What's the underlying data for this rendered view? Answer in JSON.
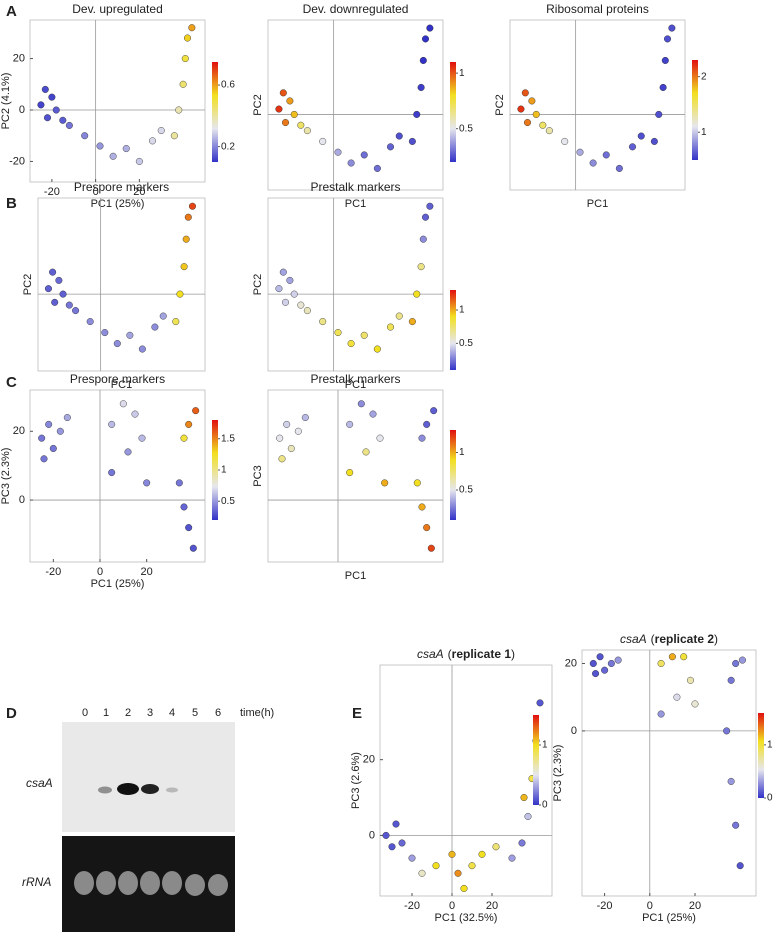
{
  "panel_labels": [
    "A",
    "B",
    "C",
    "D",
    "E"
  ],
  "colormap": [
    "#3232c8",
    "#e6e6ee",
    "#f2e020",
    "#e01010"
  ],
  "chart_data": [
    {
      "type": "scatter",
      "title": "Dev. upregulated",
      "xlabel": "PC1 (25%)",
      "ylabel": "PC2 (4.1%)",
      "xlim": [
        -30,
        50
      ],
      "ylim": [
        -28,
        35
      ],
      "xticks": [
        -20,
        0,
        20
      ],
      "yticks": [
        -20,
        0,
        20
      ],
      "x": [
        -25,
        -22,
        -20,
        -18,
        -15,
        -23,
        -12,
        -5,
        2,
        8,
        14,
        20,
        26,
        30,
        36,
        38,
        40,
        41,
        42,
        44
      ],
      "y": [
        2,
        -3,
        5,
        0,
        -4,
        8,
        -6,
        -10,
        -14,
        -18,
        -15,
        -20,
        -12,
        -8,
        -10,
        0,
        10,
        20,
        28,
        32
      ],
      "values": [
        0.12,
        0.14,
        0.12,
        0.15,
        0.15,
        0.13,
        0.18,
        0.2,
        0.22,
        0.25,
        0.25,
        0.28,
        0.3,
        0.3,
        0.4,
        0.38,
        0.45,
        0.5,
        0.55,
        0.6
      ],
      "clim": [
        0.1,
        0.75
      ],
      "cticks": [
        0.2,
        0.6
      ]
    },
    {
      "type": "scatter",
      "title": "Dev. downregulated",
      "xlabel": "PC1",
      "ylabel": "PC2",
      "xlim": [
        -30,
        50
      ],
      "ylim": [
        -28,
        35
      ],
      "x": [
        -25,
        -22,
        -20,
        -18,
        -15,
        -23,
        -12,
        -5,
        2,
        8,
        14,
        20,
        26,
        30,
        36,
        38,
        40,
        41,
        42,
        44
      ],
      "y": [
        2,
        -3,
        5,
        0,
        -4,
        8,
        -6,
        -10,
        -14,
        -18,
        -15,
        -20,
        -12,
        -8,
        -10,
        0,
        10,
        20,
        28,
        32
      ],
      "values": [
        1.05,
        0.95,
        0.9,
        0.85,
        0.7,
        1.0,
        0.6,
        0.5,
        0.4,
        0.35,
        0.3,
        0.3,
        0.28,
        0.25,
        0.25,
        0.22,
        0.22,
        0.2,
        0.2,
        0.2
      ],
      "clim": [
        0.2,
        1.1
      ],
      "cticks": [
        0.5,
        1
      ]
    },
    {
      "type": "scatter",
      "title": "Ribosomal proteins",
      "xlabel": "PC1",
      "ylabel": "PC2",
      "xlim": [
        -30,
        50
      ],
      "ylim": [
        -28,
        35
      ],
      "x": [
        -25,
        -22,
        -20,
        -18,
        -15,
        -23,
        -12,
        -5,
        2,
        8,
        14,
        20,
        26,
        30,
        36,
        38,
        40,
        41,
        42,
        44
      ],
      "y": [
        2,
        -3,
        5,
        0,
        -4,
        8,
        -6,
        -10,
        -14,
        -18,
        -15,
        -20,
        -12,
        -8,
        -10,
        0,
        10,
        20,
        28,
        32
      ],
      "values": [
        2.2,
        2.0,
        1.9,
        1.8,
        1.5,
        2.1,
        1.3,
        1.1,
        0.9,
        0.8,
        0.7,
        0.7,
        0.65,
        0.6,
        0.6,
        0.6,
        0.55,
        0.55,
        0.6,
        0.6
      ],
      "clim": [
        0.5,
        2.3
      ],
      "cticks": [
        1,
        2
      ]
    },
    {
      "type": "scatter",
      "title": "Prespore markers",
      "xlabel": "PC1",
      "ylabel": "PC2",
      "xlim": [
        -30,
        50
      ],
      "ylim": [
        -28,
        35
      ],
      "x": [
        -25,
        -22,
        -20,
        -18,
        -15,
        -23,
        -12,
        -5,
        2,
        8,
        14,
        20,
        26,
        30,
        36,
        38,
        40,
        41,
        42,
        44
      ],
      "y": [
        2,
        -3,
        5,
        0,
        -4,
        8,
        -6,
        -10,
        -14,
        -18,
        -15,
        -20,
        -12,
        -8,
        -10,
        0,
        10,
        20,
        28,
        32
      ],
      "values": [
        0.2,
        0.2,
        0.22,
        0.2,
        0.25,
        0.2,
        0.25,
        0.3,
        0.3,
        0.3,
        0.35,
        0.3,
        0.3,
        0.35,
        0.8,
        0.9,
        0.95,
        1.0,
        1.1,
        1.2
      ],
      "clim": [
        0.1,
        1.3
      ]
    },
    {
      "type": "scatter",
      "title": "Prestalk markers",
      "xlabel": "PC1",
      "ylabel": "PC2",
      "xlim": [
        -30,
        50
      ],
      "ylim": [
        -28,
        35
      ],
      "x": [
        -25,
        -22,
        -20,
        -18,
        -15,
        -23,
        -12,
        -5,
        2,
        8,
        14,
        20,
        26,
        30,
        36,
        38,
        40,
        41,
        42,
        44
      ],
      "y": [
        2,
        -3,
        5,
        0,
        -4,
        8,
        -6,
        -10,
        -14,
        -18,
        -15,
        -20,
        -12,
        -8,
        -10,
        0,
        10,
        20,
        28,
        32
      ],
      "values": [
        0.4,
        0.45,
        0.35,
        0.45,
        0.55,
        0.35,
        0.6,
        0.7,
        0.8,
        0.85,
        0.75,
        0.9,
        0.8,
        0.7,
        1.0,
        0.9,
        0.7,
        0.3,
        0.2,
        0.2
      ],
      "clim": [
        0.1,
        1.3
      ],
      "cticks": [
        0.5,
        1
      ]
    },
    {
      "type": "scatter",
      "title": "Prespore markers",
      "xlabel": "PC1 (25%)",
      "ylabel": "PC3 (2.3%)",
      "xlim": [
        -30,
        45
      ],
      "ylim": [
        -18,
        32
      ],
      "xticks": [
        -20,
        0,
        20
      ],
      "yticks": [
        0,
        20
      ],
      "x": [
        -25,
        -22,
        -20,
        -17,
        -14,
        -24,
        5,
        10,
        15,
        18,
        12,
        5,
        20,
        38,
        41,
        36,
        34,
        36,
        38,
        40
      ],
      "y": [
        18,
        22,
        15,
        20,
        24,
        12,
        22,
        28,
        25,
        18,
        14,
        8,
        5,
        22,
        26,
        18,
        5,
        -2,
        -8,
        -14
      ],
      "values": [
        0.4,
        0.45,
        0.4,
        0.5,
        0.55,
        0.4,
        0.6,
        0.7,
        0.65,
        0.6,
        0.5,
        0.4,
        0.45,
        1.5,
        1.6,
        1.2,
        0.4,
        0.35,
        0.3,
        0.3
      ],
      "clim": [
        0.2,
        1.8
      ],
      "cticks": [
        0.5,
        1,
        1.5
      ]
    },
    {
      "type": "scatter",
      "title": "Prestalk markers",
      "xlabel": "PC1",
      "ylabel": "PC3",
      "xlim": [
        -30,
        45
      ],
      "ylim": [
        -18,
        32
      ],
      "x": [
        -25,
        -22,
        -20,
        -17,
        -14,
        -24,
        5,
        10,
        15,
        18,
        12,
        5,
        20,
        38,
        41,
        36,
        34,
        36,
        38,
        40
      ],
      "y": [
        18,
        22,
        15,
        20,
        24,
        12,
        22,
        28,
        25,
        18,
        14,
        8,
        5,
        22,
        26,
        18,
        5,
        -2,
        -8,
        -14
      ],
      "values": [
        0.5,
        0.45,
        0.6,
        0.5,
        0.4,
        0.7,
        0.4,
        0.3,
        0.35,
        0.5,
        0.7,
        0.9,
        1.0,
        0.2,
        0.2,
        0.3,
        0.9,
        1.0,
        1.1,
        1.2
      ],
      "clim": [
        0.1,
        1.3
      ],
      "cticks": [
        0.5,
        1
      ]
    },
    {
      "type": "scatter",
      "title_parts": [
        "csaA",
        "(",
        "replicate 1",
        ")"
      ],
      "xlabel": "PC1 (32.5%)",
      "ylabel": "PC3 (2.6%)",
      "xlim": [
        -36,
        50
      ],
      "ylim": [
        -16,
        45
      ],
      "xticks": [
        -20,
        0,
        20
      ],
      "yticks": [
        0,
        20
      ],
      "x": [
        -33,
        -30,
        -28,
        -25,
        -20,
        -15,
        -8,
        0,
        3,
        6,
        10,
        15,
        22,
        30,
        35,
        38,
        40,
        42,
        44,
        36
      ],
      "y": [
        0,
        -3,
        3,
        -2,
        -6,
        -10,
        -8,
        -5,
        -10,
        -14,
        -8,
        -5,
        -3,
        -6,
        -2,
        5,
        15,
        25,
        35,
        10
      ],
      "values": [
        0.1,
        0.1,
        0.1,
        0.15,
        0.3,
        0.6,
        1.0,
        1.1,
        1.2,
        1.0,
        0.9,
        1.0,
        0.8,
        0.3,
        0.2,
        0.4,
        0.9,
        0.2,
        0.1,
        1.1
      ],
      "clim": [
        0,
        1.5
      ],
      "cticks": [
        0,
        1
      ]
    },
    {
      "type": "scatter",
      "title_parts": [
        "csaA",
        "(",
        "replicate 2",
        ")"
      ],
      "xlabel": "PC1 (25%)",
      "ylabel": "PC3 (2.3%)",
      "xlim": [
        -30,
        47
      ],
      "ylim": [
        -49,
        24
      ],
      "xticks": [
        -20,
        0,
        20
      ],
      "yticks": [
        0,
        20
      ],
      "x": [
        -25,
        -22,
        -20,
        -17,
        -14,
        -24,
        5,
        10,
        15,
        18,
        12,
        5,
        20,
        38,
        41,
        36,
        34,
        36,
        38,
        40
      ],
      "y": [
        20,
        22,
        18,
        20,
        21,
        17,
        20,
        22,
        22,
        15,
        10,
        5,
        8,
        20,
        21,
        15,
        0,
        -15,
        -28,
        -40
      ],
      "values": [
        0.1,
        0.1,
        0.15,
        0.2,
        0.3,
        0.1,
        0.9,
        1.2,
        1.0,
        0.7,
        0.5,
        0.3,
        0.6,
        0.2,
        0.3,
        0.2,
        0.2,
        0.3,
        0.2,
        0.1
      ],
      "clim": [
        0,
        1.6
      ],
      "cticks": [
        0,
        1
      ]
    }
  ],
  "blot": {
    "lanes": [
      0,
      1,
      2,
      3,
      4,
      5,
      6
    ],
    "time_label": "time(h)",
    "rows": [
      "csaA",
      "rRNA"
    ]
  }
}
